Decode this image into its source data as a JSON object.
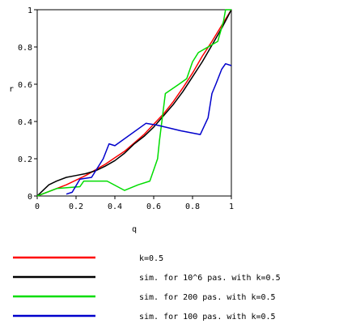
{
  "chart_data": {
    "type": "line",
    "xlabel": "q",
    "ylabel": "r",
    "xlim": [
      0,
      1
    ],
    "ylim": [
      0,
      1
    ],
    "x_ticks": [
      "0",
      "0.2",
      "0.4",
      "0.6",
      "0.8",
      "1"
    ],
    "y_ticks": [
      "0",
      "0.2",
      "0.4",
      "0.6",
      "0.8",
      "1"
    ],
    "grid": false,
    "legend_position": "bottom",
    "series": [
      {
        "name": "k=0.5",
        "color": "#ff0000",
        "points": [
          [
            0,
            0
          ],
          [
            0.05,
            0.02
          ],
          [
            0.1,
            0.04
          ],
          [
            0.15,
            0.06
          ],
          [
            0.2,
            0.085
          ],
          [
            0.25,
            0.11
          ],
          [
            0.3,
            0.14
          ],
          [
            0.35,
            0.17
          ],
          [
            0.4,
            0.205
          ],
          [
            0.45,
            0.24
          ],
          [
            0.5,
            0.285
          ],
          [
            0.55,
            0.33
          ],
          [
            0.6,
            0.385
          ],
          [
            0.65,
            0.44
          ],
          [
            0.7,
            0.505
          ],
          [
            0.75,
            0.58
          ],
          [
            0.8,
            0.66
          ],
          [
            0.85,
            0.75
          ],
          [
            0.9,
            0.83
          ],
          [
            0.95,
            0.915
          ],
          [
            1.0,
            1.0
          ]
        ]
      },
      {
        "name": "sim. for 10^6 pas. with k=0.5",
        "color": "#000000",
        "points": [
          [
            0,
            0
          ],
          [
            0.03,
            0.03
          ],
          [
            0.06,
            0.06
          ],
          [
            0.1,
            0.08
          ],
          [
            0.15,
            0.1
          ],
          [
            0.2,
            0.11
          ],
          [
            0.25,
            0.12
          ],
          [
            0.3,
            0.135
          ],
          [
            0.35,
            0.16
          ],
          [
            0.4,
            0.19
          ],
          [
            0.45,
            0.23
          ],
          [
            0.5,
            0.28
          ],
          [
            0.55,
            0.32
          ],
          [
            0.6,
            0.37
          ],
          [
            0.65,
            0.43
          ],
          [
            0.7,
            0.49
          ],
          [
            0.75,
            0.56
          ],
          [
            0.8,
            0.64
          ],
          [
            0.85,
            0.72
          ],
          [
            0.9,
            0.81
          ],
          [
            0.95,
            0.9
          ],
          [
            1.0,
            1.0
          ]
        ]
      },
      {
        "name": "sim. for 200 pas. with k=0.5",
        "color": "#00dd00",
        "points": [
          [
            0,
            0
          ],
          [
            0.1,
            0.04
          ],
          [
            0.22,
            0.05
          ],
          [
            0.24,
            0.08
          ],
          [
            0.36,
            0.08
          ],
          [
            0.45,
            0.03
          ],
          [
            0.52,
            0.06
          ],
          [
            0.58,
            0.08
          ],
          [
            0.62,
            0.2
          ],
          [
            0.63,
            0.3
          ],
          [
            0.66,
            0.55
          ],
          [
            0.73,
            0.6
          ],
          [
            0.77,
            0.63
          ],
          [
            0.8,
            0.72
          ],
          [
            0.83,
            0.77
          ],
          [
            0.88,
            0.8
          ],
          [
            0.93,
            0.83
          ],
          [
            0.96,
            0.94
          ],
          [
            0.97,
            1.0
          ],
          [
            1.0,
            1.0
          ]
        ]
      },
      {
        "name": "sim. for 100 pas. with k=0.5",
        "color": "#0000cc",
        "points": [
          [
            0.15,
            0.01
          ],
          [
            0.18,
            0.02
          ],
          [
            0.22,
            0.09
          ],
          [
            0.28,
            0.1
          ],
          [
            0.34,
            0.2
          ],
          [
            0.37,
            0.28
          ],
          [
            0.4,
            0.27
          ],
          [
            0.56,
            0.39
          ],
          [
            0.62,
            0.38
          ],
          [
            0.74,
            0.35
          ],
          [
            0.84,
            0.33
          ],
          [
            0.88,
            0.42
          ],
          [
            0.9,
            0.55
          ],
          [
            0.92,
            0.6
          ],
          [
            0.95,
            0.68
          ],
          [
            0.97,
            0.71
          ],
          [
            1.0,
            0.7
          ]
        ]
      }
    ]
  }
}
